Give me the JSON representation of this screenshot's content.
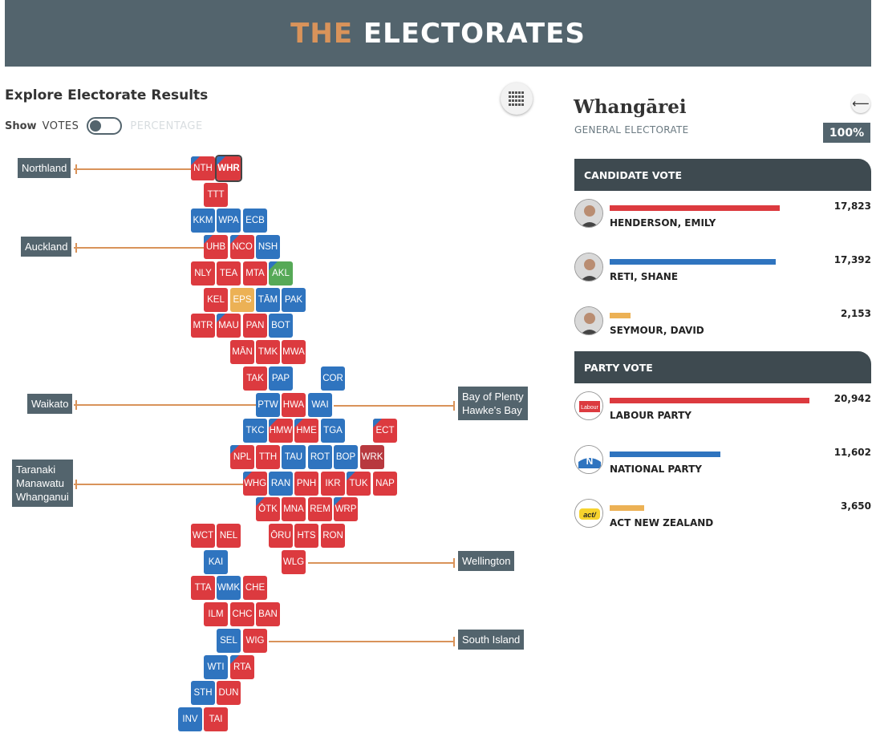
{
  "header": {
    "title_accent": "THE",
    "title_main": "ELECTORATES"
  },
  "explore": {
    "title": "Explore Electorate Results",
    "show_label": "Show",
    "votes_label": "VOTES",
    "percentage_label": "PERCENTAGE"
  },
  "colors": {
    "labour": "#dc3a3f",
    "national": "#2f74bf",
    "act": "#ecb155",
    "green": "#56a957",
    "maori": "#b8393f",
    "banner": "#53646d",
    "leader": "#d9935a"
  },
  "regions": [
    "Northland",
    "Auckland",
    "Waikato",
    "Bay of Plenty\nHawke's Bay",
    "Taranaki\nManawatu\nWhanganui",
    "Wellington",
    "South Island"
  ],
  "tiles": [
    {
      "code": "NTH",
      "party": "labour",
      "flip": "national"
    },
    {
      "code": "WHR",
      "party": "labour",
      "flip": "national",
      "selected": true
    },
    {
      "code": "TTT",
      "party": "labour"
    },
    {
      "code": "KKM",
      "party": "national"
    },
    {
      "code": "WPA",
      "party": "national"
    },
    {
      "code": "ECB",
      "party": "national"
    },
    {
      "code": "UHB",
      "party": "labour",
      "flip": "national"
    },
    {
      "code": "NCO",
      "party": "labour",
      "flip": "national"
    },
    {
      "code": "NSH",
      "party": "national"
    },
    {
      "code": "NLY",
      "party": "labour"
    },
    {
      "code": "TEA",
      "party": "labour"
    },
    {
      "code": "MTA",
      "party": "labour"
    },
    {
      "code": "AKL",
      "party": "green",
      "flip": "national"
    },
    {
      "code": "KEL",
      "party": "labour"
    },
    {
      "code": "EPS",
      "party": "act"
    },
    {
      "code": "TĀM",
      "party": "national"
    },
    {
      "code": "PAK",
      "party": "national"
    },
    {
      "code": "MTR",
      "party": "labour"
    },
    {
      "code": "MAU",
      "party": "labour",
      "flip": "national"
    },
    {
      "code": "PAN",
      "party": "labour"
    },
    {
      "code": "BOT",
      "party": "national"
    },
    {
      "code": "MĀN",
      "party": "labour"
    },
    {
      "code": "TMK",
      "party": "labour"
    },
    {
      "code": "MWA",
      "party": "labour"
    },
    {
      "code": "TAK",
      "party": "labour"
    },
    {
      "code": "PAP",
      "party": "national"
    },
    {
      "code": "COR",
      "party": "national"
    },
    {
      "code": "PTW",
      "party": "national"
    },
    {
      "code": "HWA",
      "party": "labour"
    },
    {
      "code": "WAI",
      "party": "national"
    },
    {
      "code": "TKC",
      "party": "national"
    },
    {
      "code": "HMW",
      "party": "labour",
      "flip": "national"
    },
    {
      "code": "HME",
      "party": "labour",
      "flip": "national"
    },
    {
      "code": "TGA",
      "party": "national"
    },
    {
      "code": "ECT",
      "party": "labour",
      "flip": "national"
    },
    {
      "code": "NPL",
      "party": "labour",
      "flip": "national"
    },
    {
      "code": "TTH",
      "party": "labour"
    },
    {
      "code": "TAU",
      "party": "national"
    },
    {
      "code": "ROT",
      "party": "national"
    },
    {
      "code": "BOP",
      "party": "national"
    },
    {
      "code": "WRK",
      "party": "maori"
    },
    {
      "code": "WHG",
      "party": "labour",
      "flip": "national"
    },
    {
      "code": "RAN",
      "party": "national"
    },
    {
      "code": "PNH",
      "party": "labour"
    },
    {
      "code": "IKR",
      "party": "labour"
    },
    {
      "code": "TUK",
      "party": "labour",
      "flip": "national"
    },
    {
      "code": "NAP",
      "party": "labour"
    },
    {
      "code": "ŌTK",
      "party": "labour",
      "flip": "national"
    },
    {
      "code": "MNA",
      "party": "labour"
    },
    {
      "code": "REM",
      "party": "labour"
    },
    {
      "code": "WRP",
      "party": "labour",
      "flip": "national"
    },
    {
      "code": "WCT",
      "party": "labour"
    },
    {
      "code": "NEL",
      "party": "labour"
    },
    {
      "code": "ŌRU",
      "party": "labour"
    },
    {
      "code": "HTS",
      "party": "labour"
    },
    {
      "code": "RON",
      "party": "labour"
    },
    {
      "code": "KAI",
      "party": "national"
    },
    {
      "code": "WLG",
      "party": "labour"
    },
    {
      "code": "TTA",
      "party": "labour"
    },
    {
      "code": "WMK",
      "party": "national"
    },
    {
      "code": "CHE",
      "party": "labour"
    },
    {
      "code": "ILM",
      "party": "labour"
    },
    {
      "code": "CHC",
      "party": "labour"
    },
    {
      "code": "BAN",
      "party": "labour"
    },
    {
      "code": "SEL",
      "party": "national"
    },
    {
      "code": "WIG",
      "party": "labour"
    },
    {
      "code": "WTI",
      "party": "national"
    },
    {
      "code": "RTA",
      "party": "labour",
      "flip": "national"
    },
    {
      "code": "STH",
      "party": "national"
    },
    {
      "code": "DUN",
      "party": "labour"
    },
    {
      "code": "INV",
      "party": "national"
    },
    {
      "code": "TAI",
      "party": "labour"
    }
  ],
  "electorate": {
    "name": "Whangārei",
    "type": "GENERAL ELECTORATE",
    "counted": "100%",
    "back_icon": "arrow-left-icon"
  },
  "candidate_vote": {
    "heading": "CANDIDATE VOTE",
    "max": 22000,
    "rows": [
      {
        "name": "HENDERSON, EMILY",
        "votes": "17,823",
        "value": 17823,
        "party": "labour"
      },
      {
        "name": "RETI, SHANE",
        "votes": "17,392",
        "value": 17392,
        "party": "national"
      },
      {
        "name": "SEYMOUR, DAVID",
        "votes": "2,153",
        "value": 2153,
        "party": "act"
      }
    ]
  },
  "party_vote": {
    "heading": "PARTY VOTE",
    "max": 22000,
    "rows": [
      {
        "name": "LABOUR PARTY",
        "votes": "20,942",
        "value": 20942,
        "party": "labour",
        "logo": "Labour"
      },
      {
        "name": "NATIONAL PARTY",
        "votes": "11,602",
        "value": 11602,
        "party": "national",
        "logo": "N"
      },
      {
        "name": "ACT NEW ZEALAND",
        "votes": "3,650",
        "value": 3650,
        "party": "act",
        "logo": "act"
      }
    ]
  }
}
